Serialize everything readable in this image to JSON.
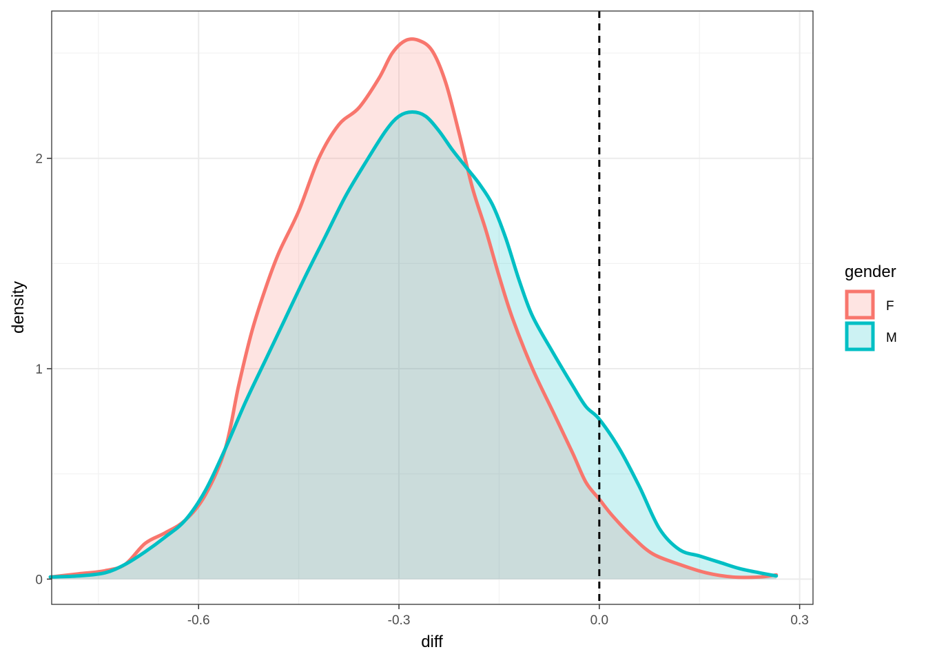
{
  "chart_data": {
    "type": "area",
    "title": "",
    "xlabel": "diff",
    "ylabel": "density",
    "xlim": [
      -0.82,
      0.32
    ],
    "ylim": [
      -0.12,
      2.7
    ],
    "x_ticks": [
      {
        "value": -0.6,
        "label": "-0.6"
      },
      {
        "value": -0.3,
        "label": "-0.3"
      },
      {
        "value": 0.0,
        "label": "0.0"
      },
      {
        "value": 0.3,
        "label": "0.3"
      }
    ],
    "y_ticks": [
      {
        "value": 0,
        "label": "0"
      },
      {
        "value": 1,
        "label": "1"
      },
      {
        "value": 2,
        "label": "2"
      }
    ],
    "grid": true,
    "reference_line": {
      "x": 0.0,
      "style": "dashed",
      "color": "#000000"
    },
    "legend": {
      "title": "gender",
      "position": "right"
    },
    "series": [
      {
        "name": "F",
        "color": "#F8766D",
        "fill": "#F8766D",
        "fill_opacity": 0.2,
        "points": [
          [
            -0.822,
            0.01
          ],
          [
            -0.78,
            0.025
          ],
          [
            -0.74,
            0.04
          ],
          [
            -0.71,
            0.07
          ],
          [
            -0.68,
            0.17
          ],
          [
            -0.65,
            0.22
          ],
          [
            -0.62,
            0.28
          ],
          [
            -0.59,
            0.4
          ],
          [
            -0.56,
            0.62
          ],
          [
            -0.54,
            0.92
          ],
          [
            -0.52,
            1.18
          ],
          [
            -0.5,
            1.38
          ],
          [
            -0.48,
            1.55
          ],
          [
            -0.45,
            1.75
          ],
          [
            -0.42,
            2.0
          ],
          [
            -0.39,
            2.16
          ],
          [
            -0.36,
            2.24
          ],
          [
            -0.33,
            2.38
          ],
          [
            -0.31,
            2.5
          ],
          [
            -0.29,
            2.56
          ],
          [
            -0.27,
            2.56
          ],
          [
            -0.25,
            2.51
          ],
          [
            -0.23,
            2.36
          ],
          [
            -0.21,
            2.12
          ],
          [
            -0.19,
            1.86
          ],
          [
            -0.17,
            1.66
          ],
          [
            -0.15,
            1.44
          ],
          [
            -0.13,
            1.24
          ],
          [
            -0.1,
            1.0
          ],
          [
            -0.07,
            0.8
          ],
          [
            -0.04,
            0.6
          ],
          [
            -0.02,
            0.46
          ],
          [
            0.0,
            0.38
          ],
          [
            0.02,
            0.3
          ],
          [
            0.05,
            0.2
          ],
          [
            0.08,
            0.12
          ],
          [
            0.12,
            0.07
          ],
          [
            0.16,
            0.03
          ],
          [
            0.2,
            0.01
          ],
          [
            0.24,
            0.01
          ],
          [
            0.265,
            0.02
          ]
        ]
      },
      {
        "name": "M",
        "color": "#00BFC4",
        "fill": "#00BFC4",
        "fill_opacity": 0.2,
        "points": [
          [
            -0.822,
            0.01
          ],
          [
            -0.78,
            0.015
          ],
          [
            -0.74,
            0.03
          ],
          [
            -0.71,
            0.07
          ],
          [
            -0.68,
            0.13
          ],
          [
            -0.65,
            0.2
          ],
          [
            -0.62,
            0.28
          ],
          [
            -0.59,
            0.42
          ],
          [
            -0.56,
            0.62
          ],
          [
            -0.53,
            0.84
          ],
          [
            -0.5,
            1.04
          ],
          [
            -0.47,
            1.24
          ],
          [
            -0.44,
            1.44
          ],
          [
            -0.41,
            1.63
          ],
          [
            -0.38,
            1.82
          ],
          [
            -0.35,
            1.98
          ],
          [
            -0.32,
            2.13
          ],
          [
            -0.3,
            2.2
          ],
          [
            -0.28,
            2.22
          ],
          [
            -0.26,
            2.2
          ],
          [
            -0.24,
            2.13
          ],
          [
            -0.22,
            2.04
          ],
          [
            -0.2,
            1.96
          ],
          [
            -0.18,
            1.88
          ],
          [
            -0.16,
            1.78
          ],
          [
            -0.14,
            1.62
          ],
          [
            -0.12,
            1.42
          ],
          [
            -0.1,
            1.25
          ],
          [
            -0.07,
            1.08
          ],
          [
            -0.04,
            0.92
          ],
          [
            -0.02,
            0.82
          ],
          [
            0.0,
            0.76
          ],
          [
            0.03,
            0.62
          ],
          [
            0.06,
            0.44
          ],
          [
            0.09,
            0.24
          ],
          [
            0.12,
            0.14
          ],
          [
            0.15,
            0.11
          ],
          [
            0.18,
            0.08
          ],
          [
            0.21,
            0.05
          ],
          [
            0.24,
            0.03
          ],
          [
            0.265,
            0.015
          ]
        ]
      }
    ]
  }
}
